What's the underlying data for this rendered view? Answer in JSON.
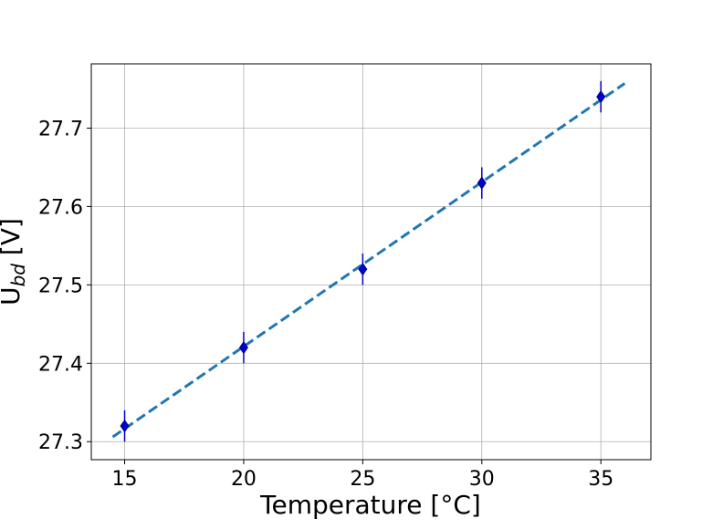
{
  "chart_data": {
    "type": "scatter",
    "title": "",
    "xlabel": "Temperature [°C]",
    "ylabel": {
      "main": "U",
      "subscript": "bd",
      "unit": " [V]"
    },
    "xlim": [
      13.6,
      37.1
    ],
    "ylim": [
      27.277,
      27.782
    ],
    "xticks": [
      15,
      20,
      25,
      30,
      35
    ],
    "yticks": [
      27.3,
      27.4,
      27.5,
      27.6,
      27.7
    ],
    "xtick_labels": [
      "15",
      "20",
      "25",
      "30",
      "35"
    ],
    "ytick_labels": [
      "27.3",
      "27.4",
      "27.5",
      "27.6",
      "27.7"
    ],
    "grid": true,
    "series": [
      {
        "kind": "points",
        "marker": "diamond",
        "color": "#0000cc",
        "x": [
          15,
          20,
          25,
          30,
          35
        ],
        "y": [
          27.32,
          27.42,
          27.52,
          27.63,
          27.74
        ],
        "yerr": [
          0.02,
          0.02,
          0.02,
          0.02,
          0.02
        ]
      },
      {
        "kind": "fit-line",
        "style": "dashed",
        "color": "#1f77b4",
        "x": [
          14.5,
          36.0
        ],
        "y": [
          27.306,
          27.757
        ]
      }
    ]
  }
}
